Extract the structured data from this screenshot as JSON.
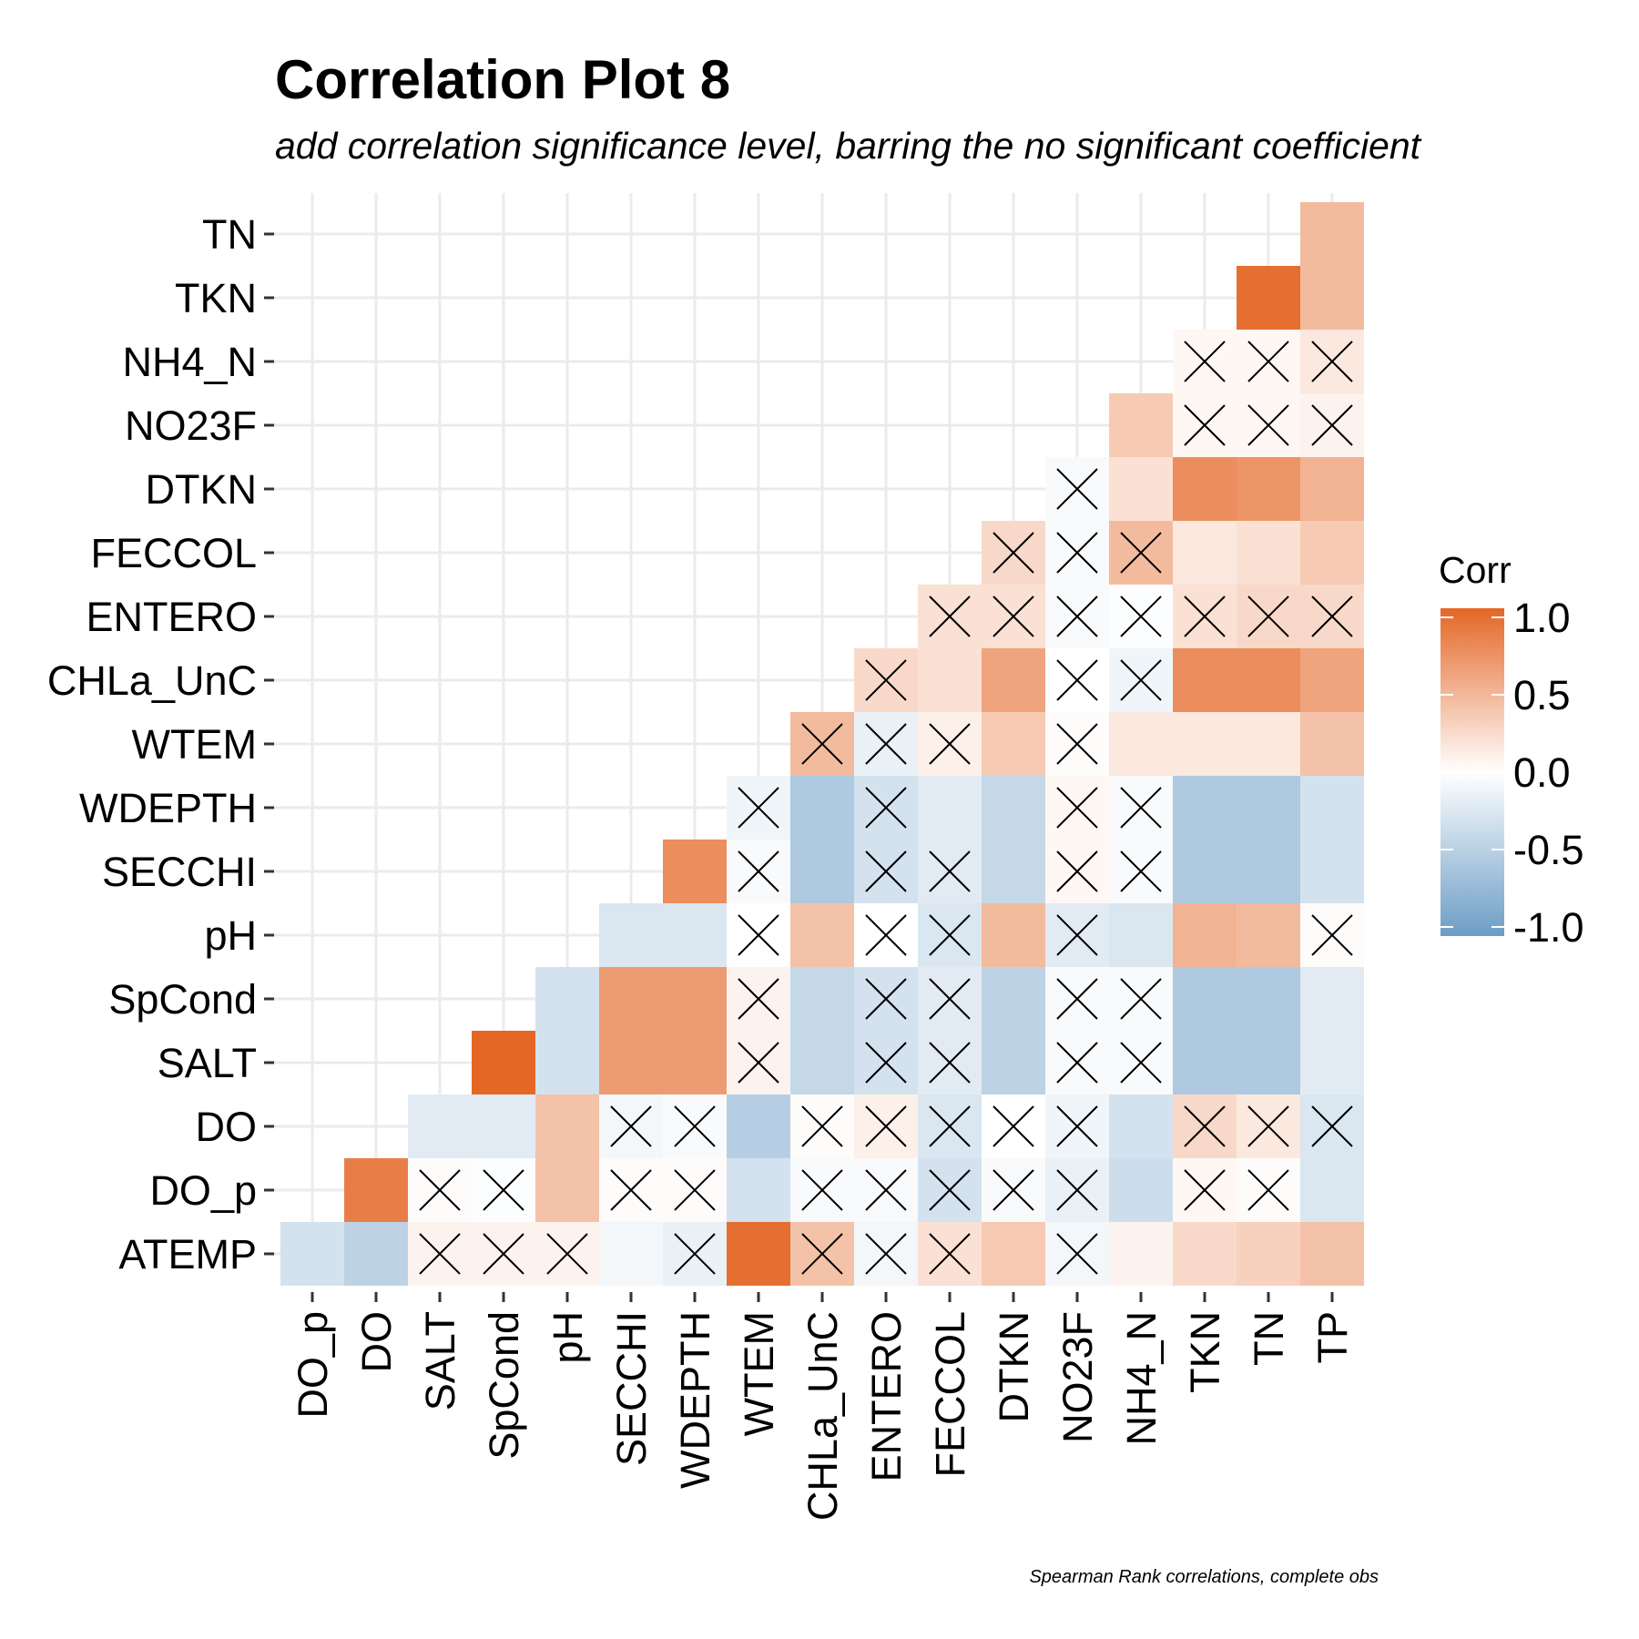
{
  "chart_data": {
    "type": "heatmap",
    "title": "Correlation Plot 8",
    "subtitle": "add correlation significance level, barring the no significant coefficient",
    "caption": "Spearman Rank correlations, complete obs",
    "x_categories": [
      "DO_p",
      "DO",
      "SALT",
      "SpCond",
      "pH",
      "SECCHI",
      "WDEPTH",
      "WTEM",
      "CHLa_UnC",
      "ENTERO",
      "FECCOL",
      "DTKN",
      "NO23F",
      "NH4_N",
      "TKN",
      "TN",
      "TP"
    ],
    "y_categories": [
      "ATEMP",
      "DO_p",
      "DO",
      "SALT",
      "SpCond",
      "pH",
      "SECCHI",
      "WDEPTH",
      "WTEM",
      "CHLa_UnC",
      "ENTERO",
      "FECCOL",
      "DTKN",
      "NO23F",
      "NH4_N",
      "TKN",
      "TN"
    ],
    "legend": {
      "title": "Corr",
      "position": "right",
      "labels": [
        "1.0",
        "0.5",
        "0.0",
        "-0.5",
        "-1.0"
      ],
      "breaks": [
        1.0,
        0.5,
        0.0,
        -0.5,
        -1.0
      ],
      "limits": [
        -1,
        1
      ]
    },
    "colors": {
      "low": "#6c9dc6",
      "mid": "#ffffff",
      "high": "#e46726"
    },
    "grid": true,
    "significance_marker": "X marks non-significant coefficient",
    "rows": [
      {
        "y": "ATEMP",
        "cells": [
          {
            "x": "DO_p",
            "r": -0.3,
            "ns": false
          },
          {
            "x": "DO",
            "r": -0.45,
            "ns": false
          },
          {
            "x": "SALT",
            "r": 0.08,
            "ns": true
          },
          {
            "x": "SpCond",
            "r": 0.08,
            "ns": true
          },
          {
            "x": "pH",
            "r": 0.08,
            "ns": true
          },
          {
            "x": "SECCHI",
            "r": -0.08,
            "ns": false
          },
          {
            "x": "WDEPTH",
            "r": -0.15,
            "ns": true
          },
          {
            "x": "WTEM",
            "r": 0.95,
            "ns": false
          },
          {
            "x": "CHLa_UnC",
            "r": 0.4,
            "ns": true
          },
          {
            "x": "ENTERO",
            "r": -0.08,
            "ns": true
          },
          {
            "x": "FECCOL",
            "r": 0.2,
            "ns": true
          },
          {
            "x": "DTKN",
            "r": 0.35,
            "ns": false
          },
          {
            "x": "NO23F",
            "r": -0.08,
            "ns": true
          },
          {
            "x": "NH4_N",
            "r": 0.08,
            "ns": false
          },
          {
            "x": "TKN",
            "r": 0.25,
            "ns": false
          },
          {
            "x": "TN",
            "r": 0.3,
            "ns": false
          },
          {
            "x": "TP",
            "r": 0.4,
            "ns": false
          }
        ]
      },
      {
        "y": "DO_p",
        "cells": [
          {
            "x": "DO",
            "r": 0.85,
            "ns": false
          },
          {
            "x": "SALT",
            "r": 0.02,
            "ns": true
          },
          {
            "x": "SpCond",
            "r": -0.02,
            "ns": true
          },
          {
            "x": "pH",
            "r": 0.4,
            "ns": false
          },
          {
            "x": "SECCHI",
            "r": 0.02,
            "ns": true
          },
          {
            "x": "WDEPTH",
            "r": 0.02,
            "ns": true
          },
          {
            "x": "WTEM",
            "r": -0.3,
            "ns": false
          },
          {
            "x": "CHLa_UnC",
            "r": -0.05,
            "ns": true
          },
          {
            "x": "ENTERO",
            "r": -0.05,
            "ns": true
          },
          {
            "x": "FECCOL",
            "r": -0.3,
            "ns": true
          },
          {
            "x": "DTKN",
            "r": -0.05,
            "ns": true
          },
          {
            "x": "NO23F",
            "r": -0.15,
            "ns": true
          },
          {
            "x": "NH4_N",
            "r": -0.35,
            "ns": false
          },
          {
            "x": "TKN",
            "r": 0.05,
            "ns": true
          },
          {
            "x": "TN",
            "r": 0.02,
            "ns": true
          },
          {
            "x": "TP",
            "r": -0.25,
            "ns": false
          }
        ]
      },
      {
        "y": "DO",
        "cells": [
          {
            "x": "SALT",
            "r": -0.2,
            "ns": false
          },
          {
            "x": "SpCond",
            "r": -0.2,
            "ns": false
          },
          {
            "x": "pH",
            "r": 0.4,
            "ns": false
          },
          {
            "x": "SECCHI",
            "r": -0.08,
            "ns": true
          },
          {
            "x": "WDEPTH",
            "r": -0.05,
            "ns": true
          },
          {
            "x": "WTEM",
            "r": -0.5,
            "ns": false
          },
          {
            "x": "CHLa_UnC",
            "r": 0.02,
            "ns": true
          },
          {
            "x": "ENTERO",
            "r": 0.1,
            "ns": true
          },
          {
            "x": "FECCOL",
            "r": -0.25,
            "ns": true
          },
          {
            "x": "DTKN",
            "r": 0.0,
            "ns": true
          },
          {
            "x": "NO23F",
            "r": -0.1,
            "ns": true
          },
          {
            "x": "NH4_N",
            "r": -0.3,
            "ns": false
          },
          {
            "x": "TKN",
            "r": 0.25,
            "ns": true
          },
          {
            "x": "TN",
            "r": 0.15,
            "ns": true
          },
          {
            "x": "TP",
            "r": -0.25,
            "ns": true
          }
        ]
      },
      {
        "y": "SALT",
        "cells": [
          {
            "x": "SpCond",
            "r": 1.0,
            "ns": false
          },
          {
            "x": "pH",
            "r": -0.3,
            "ns": false
          },
          {
            "x": "SECCHI",
            "r": 0.65,
            "ns": false
          },
          {
            "x": "WDEPTH",
            "r": 0.65,
            "ns": false
          },
          {
            "x": "WTEM",
            "r": 0.08,
            "ns": true
          },
          {
            "x": "CHLa_UnC",
            "r": -0.4,
            "ns": false
          },
          {
            "x": "ENTERO",
            "r": -0.3,
            "ns": true
          },
          {
            "x": "FECCOL",
            "r": -0.2,
            "ns": true
          },
          {
            "x": "DTKN",
            "r": -0.45,
            "ns": false
          },
          {
            "x": "NO23F",
            "r": -0.05,
            "ns": true
          },
          {
            "x": "NH4_N",
            "r": -0.05,
            "ns": true
          },
          {
            "x": "TKN",
            "r": -0.55,
            "ns": false
          },
          {
            "x": "TN",
            "r": -0.55,
            "ns": false
          },
          {
            "x": "TP",
            "r": -0.2,
            "ns": false
          }
        ]
      },
      {
        "y": "SpCond",
        "cells": [
          {
            "x": "pH",
            "r": -0.3,
            "ns": false
          },
          {
            "x": "SECCHI",
            "r": 0.65,
            "ns": false
          },
          {
            "x": "WDEPTH",
            "r": 0.65,
            "ns": false
          },
          {
            "x": "WTEM",
            "r": 0.08,
            "ns": true
          },
          {
            "x": "CHLa_UnC",
            "r": -0.4,
            "ns": false
          },
          {
            "x": "ENTERO",
            "r": -0.3,
            "ns": true
          },
          {
            "x": "FECCOL",
            "r": -0.2,
            "ns": true
          },
          {
            "x": "DTKN",
            "r": -0.45,
            "ns": false
          },
          {
            "x": "NO23F",
            "r": -0.05,
            "ns": true
          },
          {
            "x": "NH4_N",
            "r": -0.05,
            "ns": true
          },
          {
            "x": "TKN",
            "r": -0.55,
            "ns": false
          },
          {
            "x": "TN",
            "r": -0.55,
            "ns": false
          },
          {
            "x": "TP",
            "r": -0.2,
            "ns": false
          }
        ]
      },
      {
        "y": "pH",
        "cells": [
          {
            "x": "SECCHI",
            "r": -0.25,
            "ns": false
          },
          {
            "x": "WDEPTH",
            "r": -0.25,
            "ns": false
          },
          {
            "x": "WTEM",
            "r": 0.0,
            "ns": true
          },
          {
            "x": "CHLa_UnC",
            "r": 0.4,
            "ns": false
          },
          {
            "x": "ENTERO",
            "r": 0.0,
            "ns": true
          },
          {
            "x": "FECCOL",
            "r": -0.25,
            "ns": true
          },
          {
            "x": "DTKN",
            "r": 0.45,
            "ns": false
          },
          {
            "x": "NO23F",
            "r": -0.2,
            "ns": true
          },
          {
            "x": "NH4_N",
            "r": -0.25,
            "ns": false
          },
          {
            "x": "TKN",
            "r": 0.5,
            "ns": false
          },
          {
            "x": "TN",
            "r": 0.45,
            "ns": false
          },
          {
            "x": "TP",
            "r": 0.02,
            "ns": true
          }
        ]
      },
      {
        "y": "SECCHI",
        "cells": [
          {
            "x": "WDEPTH",
            "r": 0.75,
            "ns": false
          },
          {
            "x": "WTEM",
            "r": -0.05,
            "ns": true
          },
          {
            "x": "CHLa_UnC",
            "r": -0.55,
            "ns": false
          },
          {
            "x": "ENTERO",
            "r": -0.3,
            "ns": true
          },
          {
            "x": "FECCOL",
            "r": -0.2,
            "ns": true
          },
          {
            "x": "DTKN",
            "r": -0.4,
            "ns": false
          },
          {
            "x": "NO23F",
            "r": 0.05,
            "ns": true
          },
          {
            "x": "NH4_N",
            "r": -0.05,
            "ns": true
          },
          {
            "x": "TKN",
            "r": -0.55,
            "ns": false
          },
          {
            "x": "TN",
            "r": -0.55,
            "ns": false
          },
          {
            "x": "TP",
            "r": -0.3,
            "ns": false
          }
        ]
      },
      {
        "y": "WDEPTH",
        "cells": [
          {
            "x": "WTEM",
            "r": -0.1,
            "ns": true
          },
          {
            "x": "CHLa_UnC",
            "r": -0.55,
            "ns": false
          },
          {
            "x": "ENTERO",
            "r": -0.3,
            "ns": true
          },
          {
            "x": "FECCOL",
            "r": -0.2,
            "ns": false
          },
          {
            "x": "DTKN",
            "r": -0.4,
            "ns": false
          },
          {
            "x": "NO23F",
            "r": 0.05,
            "ns": true
          },
          {
            "x": "NH4_N",
            "r": -0.05,
            "ns": true
          },
          {
            "x": "TKN",
            "r": -0.55,
            "ns": false
          },
          {
            "x": "TN",
            "r": -0.55,
            "ns": false
          },
          {
            "x": "TP",
            "r": -0.3,
            "ns": false
          }
        ]
      },
      {
        "y": "WTEM",
        "cells": [
          {
            "x": "CHLa_UnC",
            "r": 0.45,
            "ns": true
          },
          {
            "x": "ENTERO",
            "r": -0.15,
            "ns": true
          },
          {
            "x": "FECCOL",
            "r": 0.1,
            "ns": true
          },
          {
            "x": "DTKN",
            "r": 0.35,
            "ns": false
          },
          {
            "x": "NO23F",
            "r": 0.02,
            "ns": true
          },
          {
            "x": "NH4_N",
            "r": 0.15,
            "ns": false
          },
          {
            "x": "TKN",
            "r": 0.15,
            "ns": false
          },
          {
            "x": "TN",
            "r": 0.15,
            "ns": false
          },
          {
            "x": "TP",
            "r": 0.4,
            "ns": false
          }
        ]
      },
      {
        "y": "CHLa_UnC",
        "cells": [
          {
            "x": "ENTERO",
            "r": 0.25,
            "ns": true
          },
          {
            "x": "FECCOL",
            "r": 0.2,
            "ns": false
          },
          {
            "x": "DTKN",
            "r": 0.6,
            "ns": false
          },
          {
            "x": "NO23F",
            "r": 0.0,
            "ns": true
          },
          {
            "x": "NH4_N",
            "r": -0.1,
            "ns": true
          },
          {
            "x": "TKN",
            "r": 0.75,
            "ns": false
          },
          {
            "x": "TN",
            "r": 0.75,
            "ns": false
          },
          {
            "x": "TP",
            "r": 0.6,
            "ns": false
          }
        ]
      },
      {
        "y": "ENTERO",
        "cells": [
          {
            "x": "FECCOL",
            "r": 0.2,
            "ns": true
          },
          {
            "x": "DTKN",
            "r": 0.2,
            "ns": true
          },
          {
            "x": "NO23F",
            "r": -0.05,
            "ns": true
          },
          {
            "x": "NH4_N",
            "r": -0.02,
            "ns": true
          },
          {
            "x": "TKN",
            "r": 0.2,
            "ns": true
          },
          {
            "x": "TN",
            "r": 0.25,
            "ns": true
          },
          {
            "x": "TP",
            "r": 0.25,
            "ns": true
          }
        ]
      },
      {
        "y": "FECCOL",
        "cells": [
          {
            "x": "DTKN",
            "r": 0.25,
            "ns": true
          },
          {
            "x": "NO23F",
            "r": -0.05,
            "ns": true
          },
          {
            "x": "NH4_N",
            "r": 0.45,
            "ns": true
          },
          {
            "x": "TKN",
            "r": 0.15,
            "ns": false
          },
          {
            "x": "TN",
            "r": 0.2,
            "ns": false
          },
          {
            "x": "TP",
            "r": 0.35,
            "ns": false
          }
        ]
      },
      {
        "y": "DTKN",
        "cells": [
          {
            "x": "NO23F",
            "r": -0.05,
            "ns": true
          },
          {
            "x": "NH4_N",
            "r": 0.2,
            "ns": false
          },
          {
            "x": "TKN",
            "r": 0.75,
            "ns": false
          },
          {
            "x": "TN",
            "r": 0.7,
            "ns": false
          },
          {
            "x": "TP",
            "r": 0.5,
            "ns": false
          }
        ]
      },
      {
        "y": "NO23F",
        "cells": [
          {
            "x": "NH4_N",
            "r": 0.35,
            "ns": false
          },
          {
            "x": "TKN",
            "r": 0.05,
            "ns": true
          },
          {
            "x": "TN",
            "r": 0.05,
            "ns": true
          },
          {
            "x": "TP",
            "r": 0.08,
            "ns": true
          }
        ]
      },
      {
        "y": "NH4_N",
        "cells": [
          {
            "x": "TKN",
            "r": 0.05,
            "ns": true
          },
          {
            "x": "TN",
            "r": 0.05,
            "ns": true
          },
          {
            "x": "TP",
            "r": 0.15,
            "ns": true
          }
        ]
      },
      {
        "y": "TKN",
        "cells": [
          {
            "x": "TN",
            "r": 0.95,
            "ns": false
          },
          {
            "x": "TP",
            "r": 0.45,
            "ns": false
          }
        ]
      },
      {
        "y": "TN",
        "cells": [
          {
            "x": "TP",
            "r": 0.45,
            "ns": false
          }
        ]
      }
    ]
  }
}
